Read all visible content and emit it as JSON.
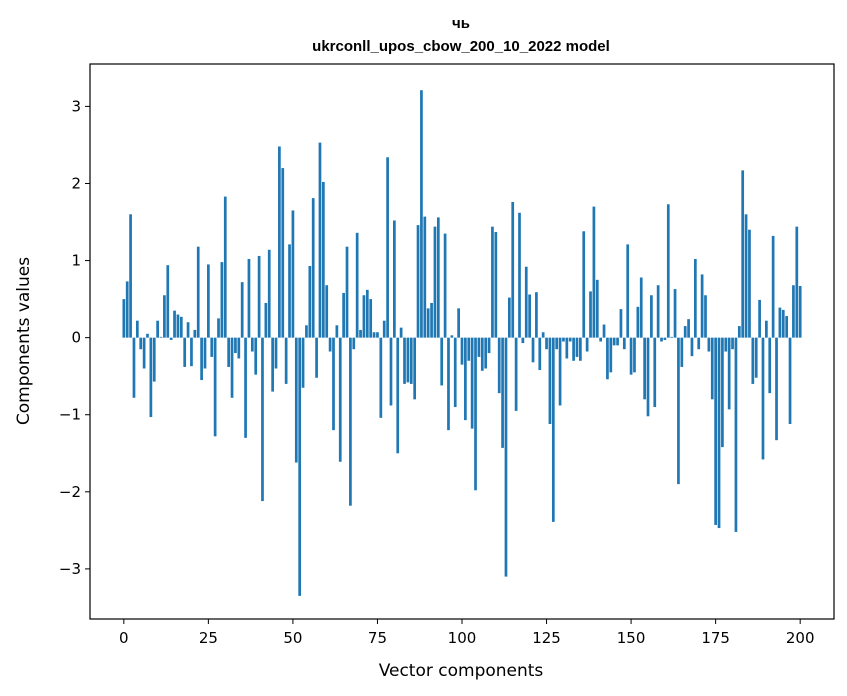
{
  "chart_data": {
    "type": "bar",
    "title": "чь",
    "subtitle": "ukrconll_upos_cbow_200_10_2022 model",
    "xlabel": "Vector components",
    "ylabel": "Components values",
    "xlim": [
      -10,
      210
    ],
    "ylim": [
      -3.65,
      3.55
    ],
    "xticks": [
      0,
      25,
      50,
      75,
      100,
      125,
      150,
      175,
      200
    ],
    "yticks": [
      -3,
      -2,
      -1,
      0,
      1,
      2,
      3
    ],
    "xtick_labels": [
      "0",
      "25",
      "50",
      "75",
      "100",
      "125",
      "150",
      "175",
      "200"
    ],
    "ytick_labels": [
      "−3",
      "−2",
      "−1",
      "0",
      "1",
      "2",
      "3"
    ],
    "grid": false,
    "bar_color": "#1f77b4",
    "values": [
      0.5,
      0.73,
      1.6,
      -0.78,
      0.22,
      -0.15,
      -0.4,
      0.05,
      -1.03,
      -0.57,
      0.22,
      0.01,
      0.55,
      0.94,
      -0.03,
      0.35,
      0.3,
      0.27,
      -0.38,
      0.2,
      -0.37,
      0.1,
      1.18,
      -0.55,
      -0.4,
      0.95,
      -0.25,
      -1.28,
      0.25,
      0.98,
      1.83,
      -0.38,
      -0.78,
      -0.2,
      -0.27,
      0.72,
      -1.3,
      1.02,
      -0.18,
      -0.48,
      1.06,
      -2.12,
      0.45,
      1.14,
      -0.7,
      -0.4,
      2.48,
      2.2,
      -0.6,
      1.21,
      1.65,
      -1.62,
      -3.35,
      -0.65,
      0.16,
      0.93,
      1.81,
      -0.52,
      2.53,
      2.02,
      0.68,
      -0.18,
      -1.2,
      0.16,
      -1.61,
      0.58,
      1.18,
      -2.18,
      -0.15,
      1.36,
      0.1,
      0.55,
      0.62,
      0.5,
      0.07,
      0.07,
      -1.04,
      0.22,
      2.34,
      -0.88,
      1.52,
      -1.5,
      0.13,
      -0.6,
      -0.58,
      -0.6,
      -0.8,
      1.46,
      3.21,
      1.57,
      0.38,
      0.45,
      1.44,
      1.56,
      -0.62,
      1.35,
      -1.2,
      0.03,
      -0.9,
      0.38,
      -0.35,
      -1.07,
      -0.3,
      -1.18,
      -1.98,
      -0.25,
      -0.43,
      -0.4,
      -0.2,
      1.44,
      1.37,
      -0.72,
      -1.43,
      -3.1,
      0.52,
      1.76,
      -0.95,
      1.62,
      -0.07,
      0.92,
      0.56,
      -0.32,
      0.59,
      -0.42,
      0.07,
      -0.15,
      -1.12,
      -2.39,
      -0.15,
      -0.88,
      -0.05,
      -0.27,
      -0.05,
      -0.3,
      -0.25,
      -0.3,
      1.38,
      -0.18,
      0.6,
      1.7,
      0.75,
      -0.05,
      0.17,
      -0.54,
      -0.45,
      -0.1,
      -0.1,
      0.37,
      -0.15,
      1.21,
      -0.48,
      -0.45,
      0.4,
      0.78,
      -0.8,
      -1.02,
      0.55,
      -0.9,
      0.68,
      -0.05,
      -0.03,
      1.73,
      0.01,
      0.63,
      -1.9,
      -0.38,
      0.15,
      0.24,
      -0.24,
      1.02,
      -0.15,
      0.82,
      0.55,
      -0.18,
      -0.8,
      -2.43,
      -2.47,
      -1.42,
      -0.18,
      -0.93,
      -0.15,
      -2.52,
      0.15,
      2.17,
      1.6,
      1.4,
      -0.6,
      -0.52,
      0.49,
      -1.58,
      0.22,
      -0.72,
      1.32,
      -1.33,
      0.39,
      0.36,
      0.28,
      -1.12,
      0.68,
      1.44,
      0.67
    ]
  }
}
